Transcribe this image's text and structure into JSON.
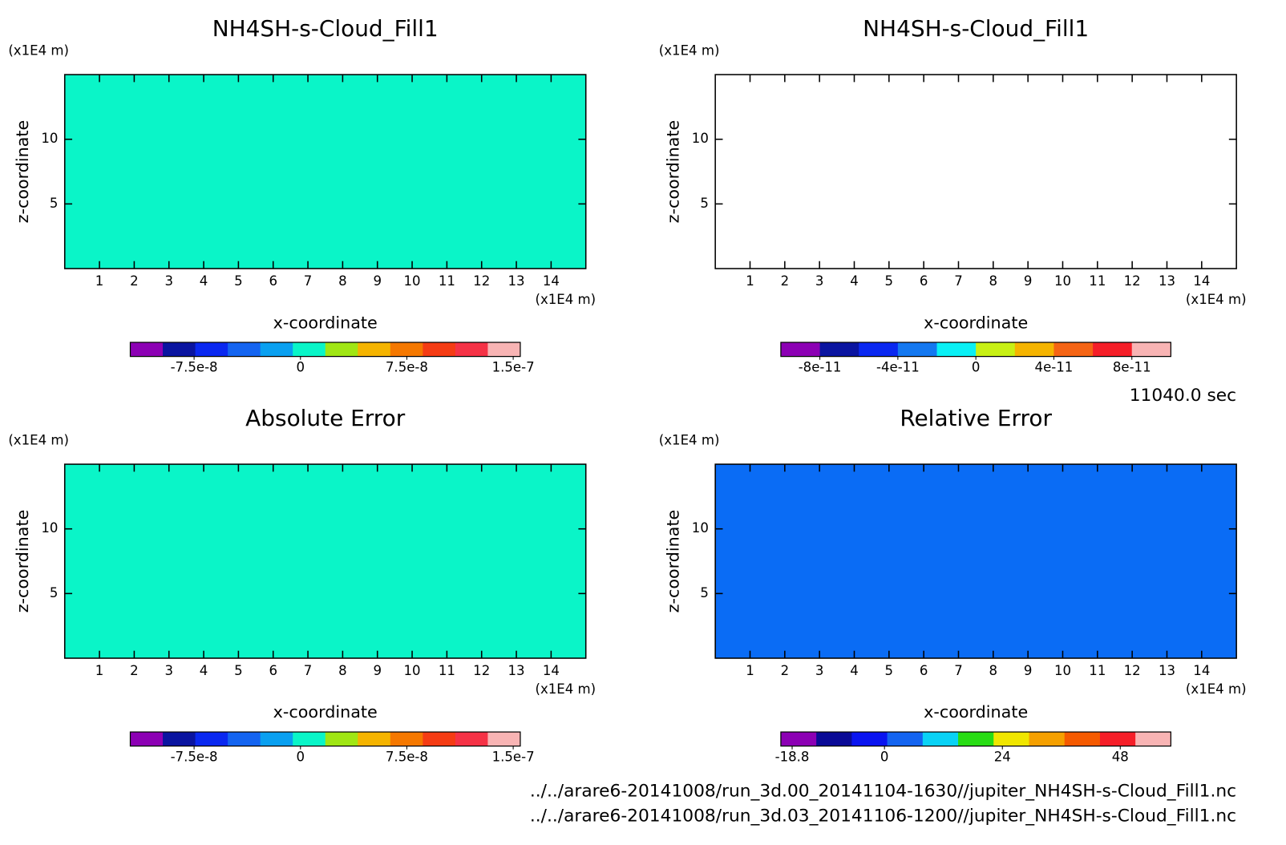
{
  "chart_data": [
    {
      "type": "contour",
      "title": "NH4SH-s-Cloud_Fill1",
      "x_label": "x-coordinate",
      "y_label": "z-coordinate",
      "x_unit": "(x1E4 m)",
      "y_unit": "(x1E4 m)",
      "xlim": [
        0,
        15
      ],
      "ylim": [
        0,
        15
      ],
      "xticks": [
        1,
        2,
        3,
        4,
        5,
        6,
        7,
        8,
        9,
        10,
        11,
        12,
        13,
        14
      ],
      "yticks": [
        5,
        10
      ],
      "fill_color": "#0af5c8",
      "colorbar_colors": [
        "#8c00b4",
        "#0a14a0",
        "#0a28f0",
        "#1464f0",
        "#0aa0f0",
        "#0af5c8",
        "#a0e614",
        "#f5b400",
        "#f57800",
        "#f53c14",
        "#f53246",
        "#f8b4b4"
      ],
      "colorbar_lim": [
        -1.2e-07,
        1.55e-07
      ],
      "colorbar_ticks": [
        -7.5e-08,
        0,
        7.5e-08,
        1.5e-07
      ]
    },
    {
      "type": "contour",
      "title": "NH4SH-s-Cloud_Fill1",
      "x_label": "x-coordinate",
      "y_label": "z-coordinate",
      "x_unit": "(x1E4 m)",
      "y_unit": "(x1E4 m)",
      "xlim": [
        0,
        15
      ],
      "ylim": [
        0,
        15
      ],
      "xticks": [
        1,
        2,
        3,
        4,
        5,
        6,
        7,
        8,
        9,
        10,
        11,
        12,
        13,
        14
      ],
      "yticks": [
        5,
        10
      ],
      "fill_color": "#ffffff",
      "colorbar_colors": [
        "#8c00b4",
        "#0a14a0",
        "#0a28f0",
        "#1478f0",
        "#0af0f5",
        "#c8f014",
        "#f5b400",
        "#f56414",
        "#f51e28",
        "#f8b4b4"
      ],
      "colorbar_lim": [
        -1e-10,
        1e-10
      ],
      "colorbar_ticks": [
        -8e-11,
        -4e-11,
        0,
        4e-11,
        8e-11
      ]
    },
    {
      "type": "contour",
      "title": "Absolute Error",
      "x_label": "x-coordinate",
      "y_label": "z-coordinate",
      "x_unit": "(x1E4 m)",
      "y_unit": "(x1E4 m)",
      "xlim": [
        0,
        15
      ],
      "ylim": [
        0,
        15
      ],
      "xticks": [
        1,
        2,
        3,
        4,
        5,
        6,
        7,
        8,
        9,
        10,
        11,
        12,
        13,
        14
      ],
      "yticks": [
        5,
        10
      ],
      "fill_color": "#0af5c8",
      "colorbar_colors": [
        "#8c00b4",
        "#0a14a0",
        "#0a28f0",
        "#1464f0",
        "#0aa0f0",
        "#0af5c8",
        "#a0e614",
        "#f5b400",
        "#f57800",
        "#f53c14",
        "#f53246",
        "#f8b4b4"
      ],
      "colorbar_lim": [
        -1.2e-07,
        1.55e-07
      ],
      "colorbar_ticks": [
        -7.5e-08,
        0,
        7.5e-08,
        1.5e-07
      ]
    },
    {
      "type": "contour",
      "title": "Relative Error",
      "x_label": "x-coordinate",
      "y_label": "z-coordinate",
      "x_unit": "(x1E4 m)",
      "y_unit": "(x1E4 m)",
      "xlim": [
        0,
        15
      ],
      "ylim": [
        0,
        15
      ],
      "xticks": [
        1,
        2,
        3,
        4,
        5,
        6,
        7,
        8,
        9,
        10,
        11,
        12,
        13,
        14
      ],
      "yticks": [
        5,
        10
      ],
      "fill_color": "#0a6cf5",
      "colorbar_colors": [
        "#8c00b4",
        "#0a0a96",
        "#0a14f0",
        "#1464f0",
        "#0ad2f5",
        "#28dc14",
        "#f0e600",
        "#f5a000",
        "#f55a00",
        "#f51e28",
        "#f8b4b4"
      ],
      "colorbar_lim": [
        -21.1,
        58.3
      ],
      "colorbar_ticks": [
        -18.8,
        0,
        24,
        48
      ]
    }
  ],
  "annotations": {
    "time": "11040.0 sec",
    "files": [
      "../../arare6-20141008/run_3d.00_20141104-1630//jupiter_NH4SH-s-Cloud_Fill1.nc",
      "../../arare6-20141008/run_3d.03_20141106-1200//jupiter_NH4SH-s-Cloud_Fill1.nc"
    ]
  }
}
